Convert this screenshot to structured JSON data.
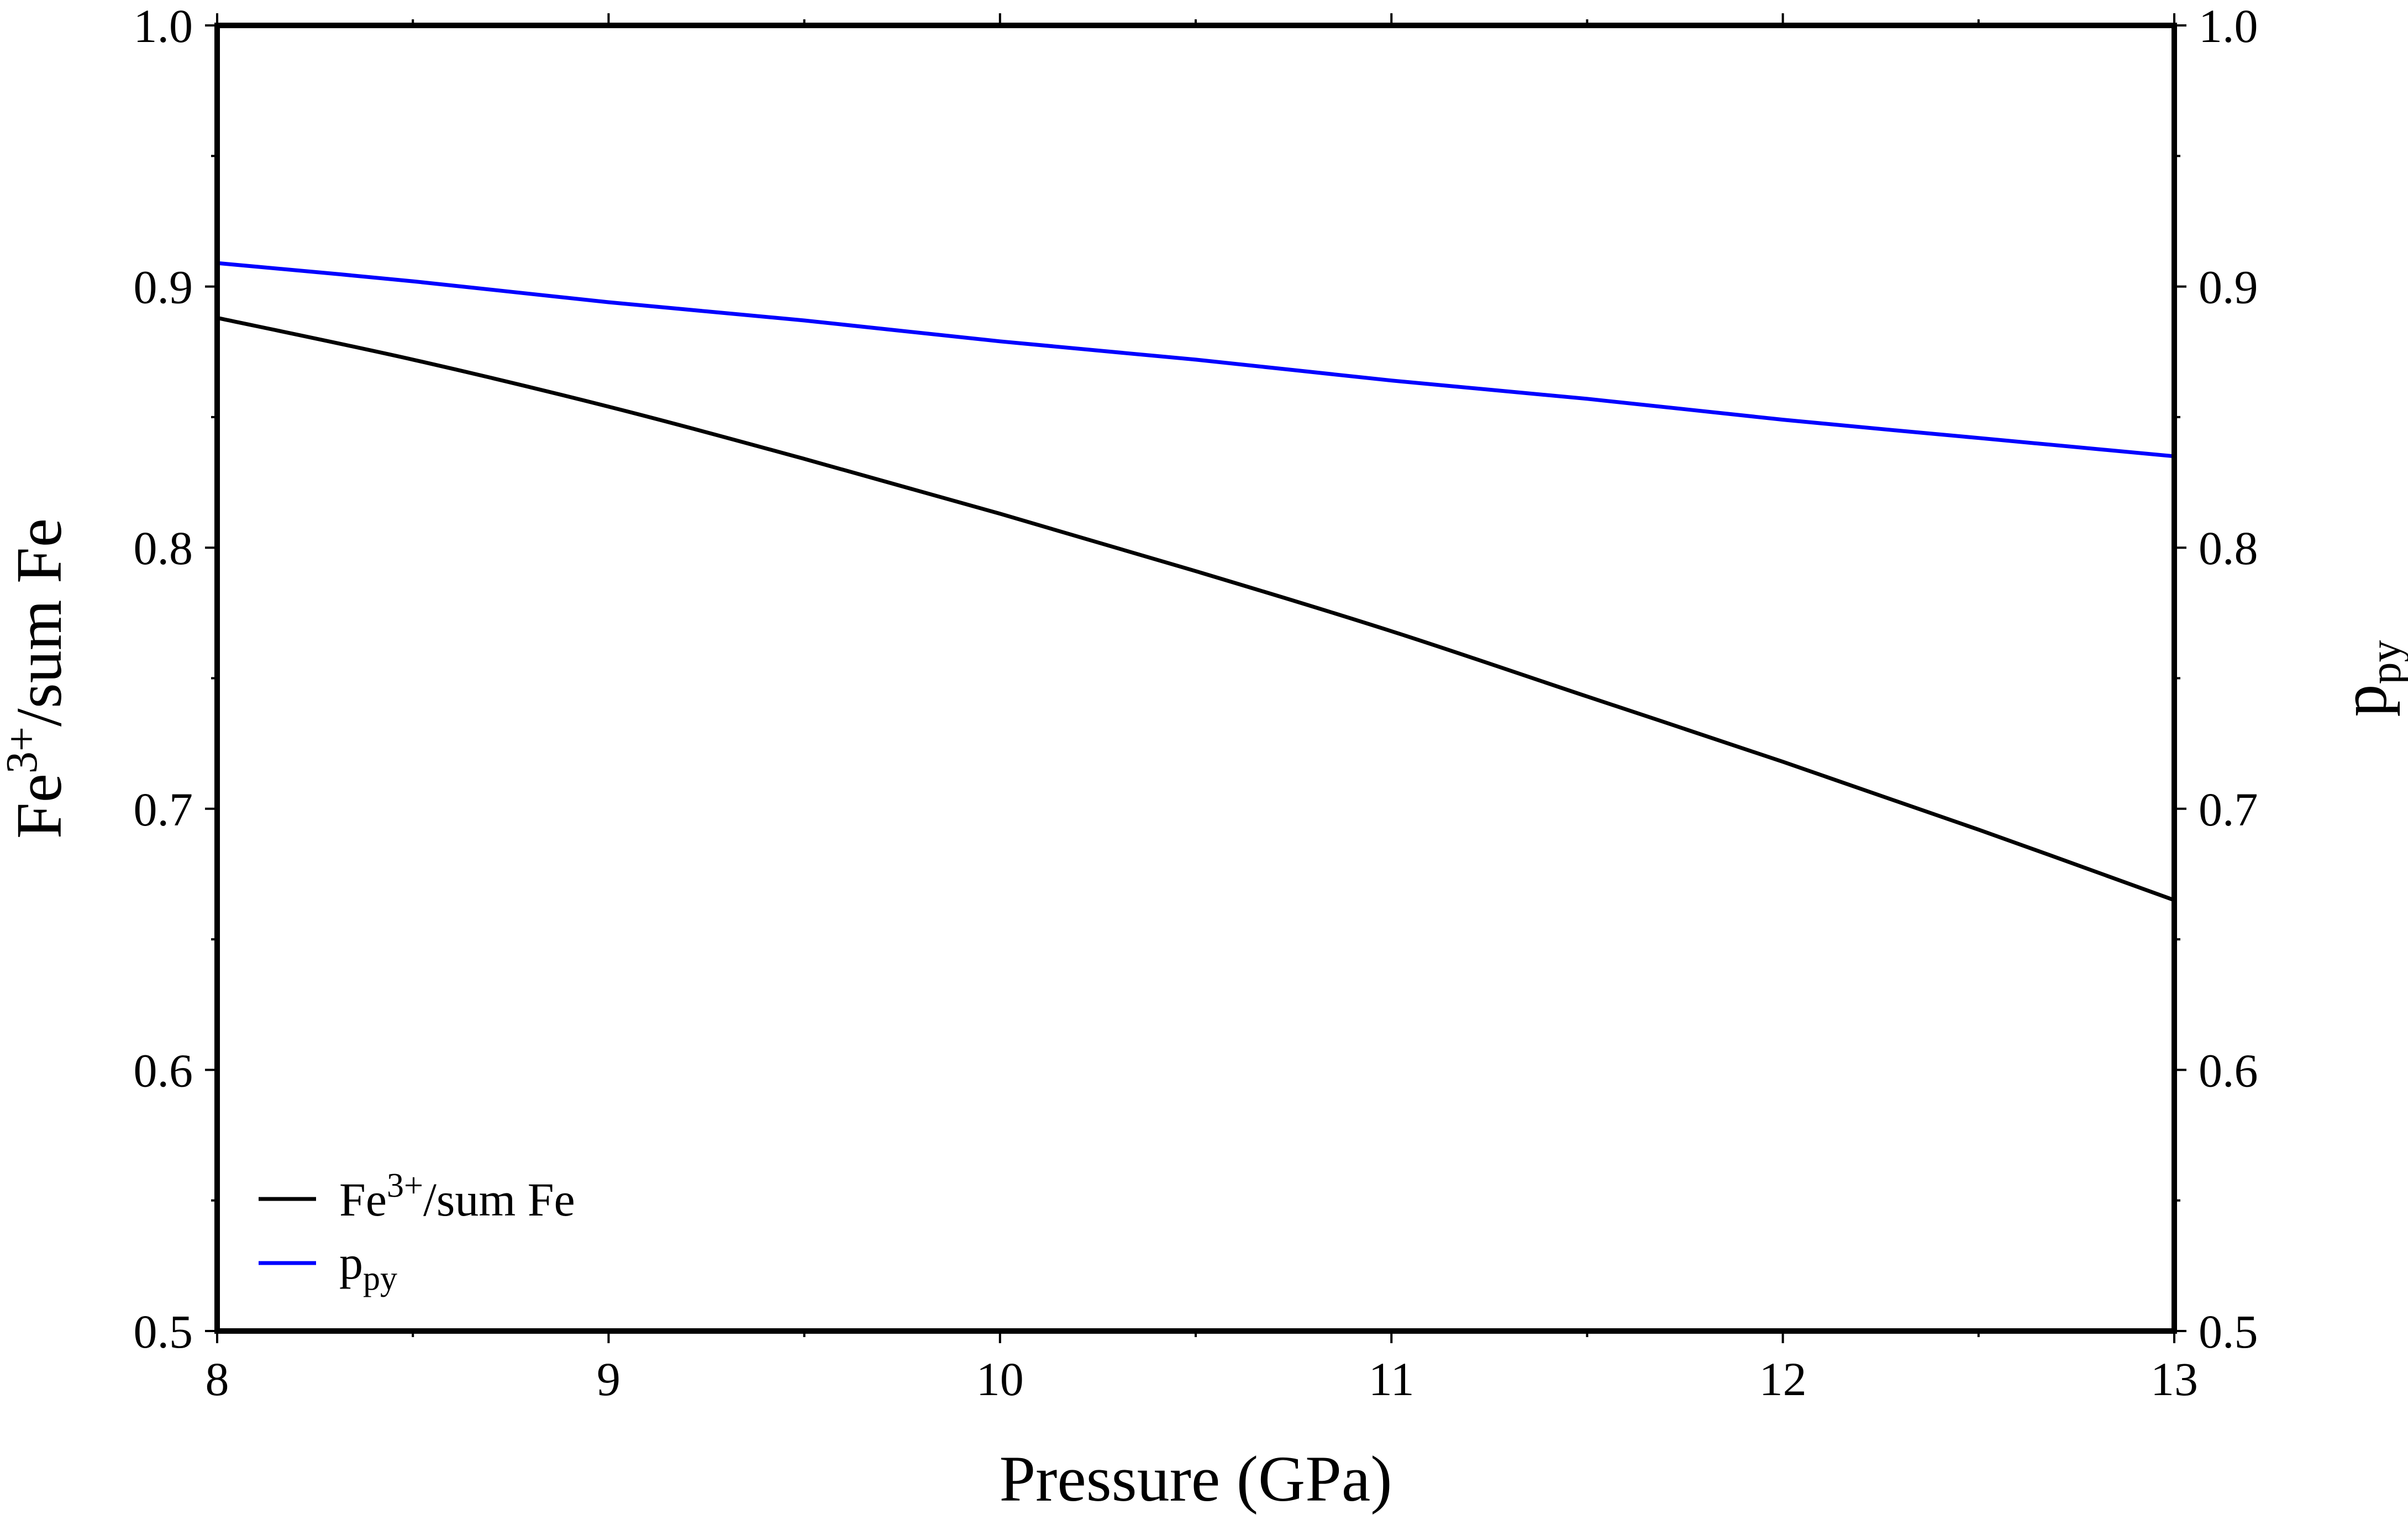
{
  "chart_data": {
    "type": "line",
    "x": [
      8,
      8.5,
      9,
      9.5,
      10,
      10.5,
      11,
      11.5,
      12,
      12.5,
      13
    ],
    "xlim": [
      8,
      13
    ],
    "ylim_left": [
      0.5,
      1.0
    ],
    "ylim_right": [
      0.5,
      1.0
    ],
    "x_ticks": [
      "8",
      "9",
      "10",
      "11",
      "12",
      "13"
    ],
    "y_ticks_left": [
      "0.5",
      "0.6",
      "0.7",
      "0.8",
      "0.9",
      "1.0"
    ],
    "y_ticks_right": [
      "0.5",
      "0.6",
      "0.7",
      "0.8",
      "0.9",
      "1.0"
    ],
    "xlabel": "Pressure (GPa)",
    "ylabel_left": {
      "base": "Fe",
      "sup": "3+",
      "rest": "/sum Fe"
    },
    "ylabel_right": {
      "base": "p",
      "sub": "py"
    },
    "grid": false,
    "legend_position": "bottom-left",
    "series": [
      {
        "name": "Fe3+/sum Fe",
        "label": {
          "base": "Fe",
          "sup": "3+",
          "rest": "/sum Fe"
        },
        "axis": "left",
        "color": "#000000",
        "values": [
          0.888,
          0.872,
          0.854,
          0.834,
          0.813,
          0.791,
          0.768,
          0.743,
          0.718,
          0.692,
          0.665
        ]
      },
      {
        "name": "p_py",
        "label": {
          "base": "p",
          "sub": "py"
        },
        "axis": "right",
        "color": "#0000ff",
        "values": [
          0.909,
          0.902,
          0.894,
          0.887,
          0.879,
          0.872,
          0.864,
          0.857,
          0.849,
          0.842,
          0.835
        ]
      }
    ]
  }
}
